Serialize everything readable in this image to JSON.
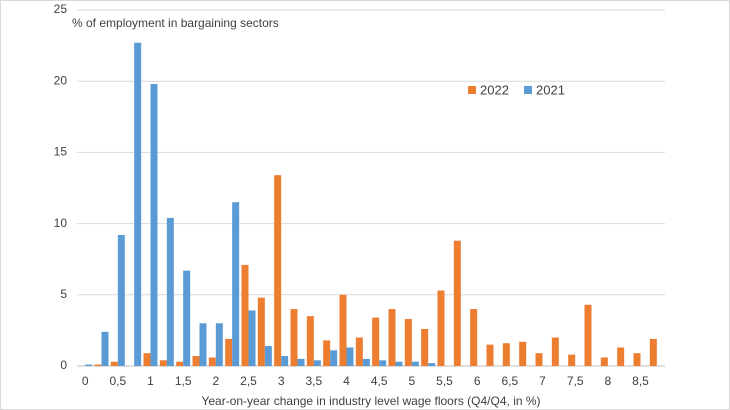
{
  "chart_data": {
    "type": "bar",
    "y_axis_label": "% of employment in bargaining sectors",
    "x_axis_label": "Year-on-year change in industry level wage floors (Q4/Q4, in %)",
    "categories": [
      "0",
      null,
      "0,5",
      null,
      "1",
      null,
      "1,5",
      null,
      "2",
      null,
      "2,5",
      null,
      "3",
      null,
      "3,5",
      null,
      "4",
      null,
      "4,5",
      null,
      "5",
      null,
      "5,5",
      null,
      "6",
      null,
      "6,5",
      null,
      "7",
      null,
      "7,5",
      null,
      "8",
      null,
      "8,5",
      null
    ],
    "series": [
      {
        "name": "2022",
        "color": "#ed7d31",
        "values": [
          0,
          0.1,
          0.3,
          0,
          0.9,
          0.4,
          0.3,
          0.7,
          0.6,
          1.9,
          7.1,
          4.8,
          13.4,
          4.0,
          3.5,
          1.8,
          5.0,
          2.0,
          3.4,
          4.0,
          3.3,
          2.6,
          5.3,
          8.8,
          4.0,
          1.5,
          1.6,
          1.7,
          0.9,
          2.0,
          0.8,
          4.3,
          0.6,
          1.3,
          0.9,
          1.9
        ]
      },
      {
        "name": "2021",
        "color": "#5b9bd5",
        "values": [
          0.1,
          2.4,
          9.2,
          22.7,
          19.8,
          10.4,
          6.7,
          3.0,
          3.0,
          11.5,
          3.9,
          1.4,
          0.7,
          0.5,
          0.4,
          1.1,
          1.3,
          0.5,
          0.4,
          0.3,
          0.3,
          0.2,
          0,
          0,
          0,
          0,
          0,
          0,
          0,
          0,
          0,
          0,
          0,
          0,
          0,
          0
        ]
      }
    ],
    "ylim": [
      0,
      25
    ],
    "yticks": [
      0,
      5,
      10,
      15,
      20,
      25
    ],
    "grid": true
  }
}
